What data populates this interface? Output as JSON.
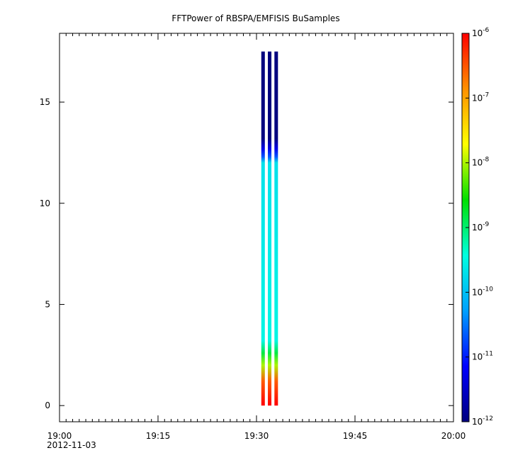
{
  "chart_data": {
    "type": "heatmap",
    "title": "FFTPower of RBSPA/EMFISIS  BuSamples",
    "xlabel": "",
    "ylabel": "",
    "x_axis": {
      "type": "time",
      "range": [
        "19:00",
        "20:00"
      ],
      "ticks": [
        "19:00",
        "19:15",
        "19:30",
        "19:45",
        "20:00"
      ],
      "date_label": "2012-11-03"
    },
    "y_axis": {
      "range": [
        -0.8,
        18.4
      ],
      "ticks": [
        0,
        5,
        10,
        15
      ]
    },
    "colorbar": {
      "scale": "log",
      "range": [
        1e-12,
        1e-06
      ],
      "colormap": "rainbow",
      "ticks": [
        {
          "base": "10",
          "exp": "-12",
          "value": 1e-12
        },
        {
          "base": "10",
          "exp": "-11",
          "value": 1e-11
        },
        {
          "base": "10",
          "exp": "-10",
          "value": 1e-10
        },
        {
          "base": "10",
          "exp": "-9",
          "value": 1e-09
        },
        {
          "base": "10",
          "exp": "-8",
          "value": 1e-08
        },
        {
          "base": "10",
          "exp": "-7",
          "value": 1e-07
        },
        {
          "base": "10",
          "exp": "-6",
          "value": 1e-06
        }
      ],
      "colors": [
        "#00007f",
        "#0000ff",
        "#00a0ff",
        "#00ffe0",
        "#00e000",
        "#ffff00",
        "#ff9000",
        "#ff0000"
      ]
    },
    "bursts": [
      {
        "time": "19:31",
        "freq_range": [
          0,
          17.5
        ]
      },
      {
        "time": "19:32",
        "freq_range": [
          0,
          17.5
        ]
      },
      {
        "time": "19:33",
        "freq_range": [
          0,
          17.5
        ]
      }
    ],
    "spectrum_profile": [
      {
        "freq": 0.0,
        "power": 1e-06
      },
      {
        "freq": 1.2,
        "power": 3e-07
      },
      {
        "freq": 2.0,
        "power": 1e-08
      },
      {
        "freq": 2.6,
        "power": 1.5e-09
      },
      {
        "freq": 3.2,
        "power": 3e-10
      },
      {
        "freq": 12.0,
        "power": 2e-10
      },
      {
        "freq": 12.3,
        "power": 2e-11
      },
      {
        "freq": 12.7,
        "power": 5e-12
      },
      {
        "freq": 13.2,
        "power": 1e-12
      },
      {
        "freq": 17.5,
        "power": 1e-12
      }
    ],
    "grid": false,
    "legend": "none"
  }
}
